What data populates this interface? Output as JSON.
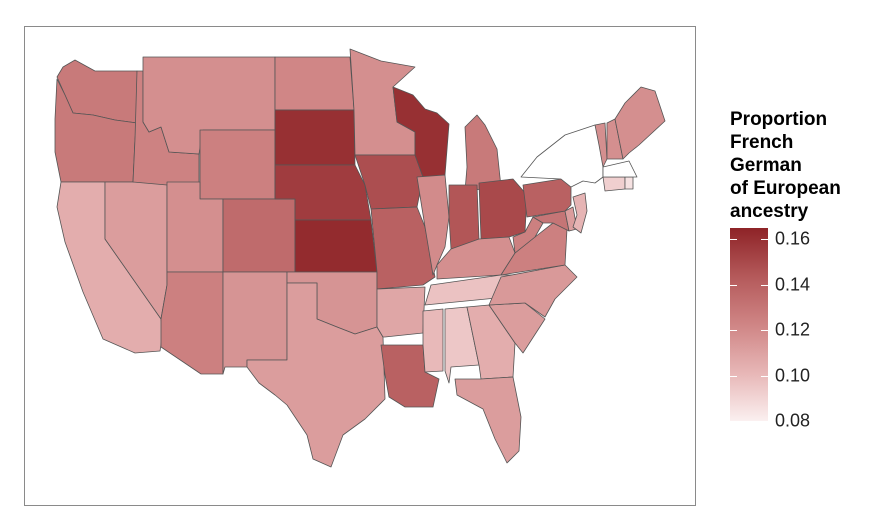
{
  "legend": {
    "title_lines": [
      "Proportion",
      "French",
      "German",
      "of European",
      "ancestry"
    ],
    "ticks": [
      "0.16",
      "0.14",
      "0.12",
      "0.10",
      "0.08"
    ],
    "tick_values": [
      0.16,
      0.14,
      0.12,
      0.1,
      0.08
    ],
    "range": [
      0.08,
      0.165
    ],
    "color_low": "#fbf0f0",
    "color_high": "#8e2327"
  },
  "colors": {
    "border": "#555555",
    "panel_border": "#8a8a8a",
    "missing_state": "#ffffff"
  },
  "map_data": {
    "type": "choropleth",
    "region": "contiguous United States",
    "variable": "Proportion French German of European ancestry",
    "states": {
      "WA": 0.128,
      "OR": 0.128,
      "CA": 0.105,
      "NV": 0.112,
      "ID": 0.124,
      "MT": 0.118,
      "WY": 0.125,
      "UT": 0.118,
      "AZ": 0.125,
      "CO": 0.135,
      "NM": 0.116,
      "ND": 0.122,
      "SD": 0.16,
      "NE": 0.155,
      "KS": 0.162,
      "OK": 0.116,
      "TX": 0.112,
      "MN": 0.118,
      "IA": 0.148,
      "MO": 0.14,
      "AR": 0.108,
      "LA": 0.14,
      "WI": 0.16,
      "IL": 0.12,
      "MI": 0.128,
      "IN": 0.145,
      "OH": 0.15,
      "KY": 0.118,
      "TN": 0.097,
      "MS": 0.1,
      "AL": 0.095,
      "GA": 0.105,
      "FL": 0.112,
      "SC": 0.112,
      "NC": 0.114,
      "VA": 0.125,
      "WV": 0.125,
      "MD": 0.13,
      "DE": 0.112,
      "PA": 0.14,
      "NJ": 0.102,
      "NY": null,
      "CT": 0.092,
      "RI": 0.085,
      "MA": null,
      "VT": 0.118,
      "NH": 0.118,
      "ME": 0.118
    }
  }
}
